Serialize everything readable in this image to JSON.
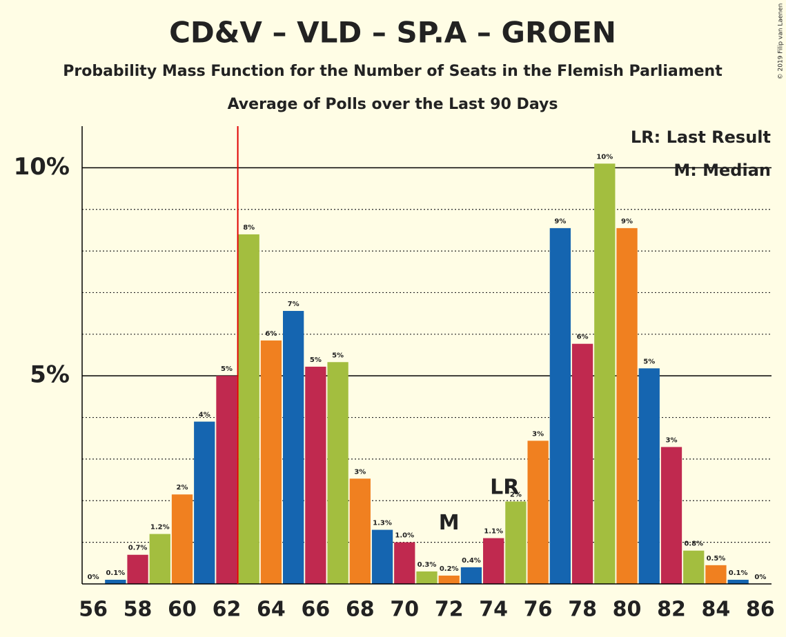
{
  "chart_data": {
    "type": "bar",
    "title": "CD&V – VLD – SP.A – GROEN",
    "subtitle": "Probability Mass Function for the Number of Seats in the Flemish Parliament",
    "subtitle2": "Average of Polls over the Last 90 Days",
    "copyright": "© 2019 Filip van Laenen",
    "categories": [
      "56",
      null,
      "58",
      null,
      "60",
      null,
      "62",
      null,
      "64",
      null,
      "66",
      null,
      "68",
      null,
      "70",
      null,
      "72",
      null,
      "74",
      null,
      "76",
      null,
      "78",
      null,
      "80",
      null,
      "82",
      null,
      "84",
      null,
      "86"
    ],
    "values": [
      0,
      0.1,
      0.7,
      1.2,
      2.15,
      3.9,
      5.0,
      8.4,
      5.85,
      6.56,
      5.22,
      5.33,
      2.53,
      1.3,
      1.0,
      0.3,
      0.2,
      0.4,
      1.1,
      1.98,
      3.44,
      8.55,
      5.77,
      10.1,
      8.55,
      5.18,
      3.29,
      0.8,
      0.45,
      0.1,
      0
    ],
    "value_labels": [
      "0%",
      "0.1%",
      "0.7%",
      "1.2%",
      "2%",
      "4%",
      "5%",
      "8%",
      "6%",
      "7%",
      "5%",
      "5%",
      "3%",
      "1.3%",
      "1.0%",
      "0.3%",
      "0.2%",
      "0.4%",
      "1.1%",
      "2%",
      "3%",
      "9%",
      "6%",
      "10%",
      "9%",
      "5%",
      "3%",
      "0.8%",
      "0.5%",
      "0.1%",
      "0%"
    ],
    "colors": [
      "#f08020",
      "#1565b0",
      "#c0294f",
      "#a3be3f",
      "#f08020",
      "#1565b0",
      "#c0294f",
      "#a3be3f",
      "#f08020",
      "#1565b0",
      "#c0294f",
      "#a3be3f",
      "#f08020",
      "#1565b0",
      "#c0294f",
      "#a3be3f",
      "#f08020",
      "#1565b0",
      "#c0294f",
      "#a3be3f",
      "#f08020",
      "#1565b0",
      "#c0294f",
      "#a3be3f",
      "#f08020",
      "#1565b0",
      "#c0294f",
      "#a3be3f",
      "#f08020",
      "#1565b0",
      "#c0294f"
    ],
    "ylim": [
      0,
      11
    ],
    "yticks": [
      {
        "value": 5,
        "label": "5%"
      },
      {
        "value": 10,
        "label": "10%"
      }
    ],
    "minor_yticks": [
      1,
      2,
      3,
      4,
      6,
      7,
      8,
      9
    ],
    "last_result": 62.5,
    "annotations": [
      {
        "text": "LR",
        "x": 74.5,
        "y": 2.3
      },
      {
        "text": "M",
        "x": 72,
        "y": 1.45
      }
    ],
    "legend": [
      "LR: Last Result",
      "M: Median"
    ]
  }
}
